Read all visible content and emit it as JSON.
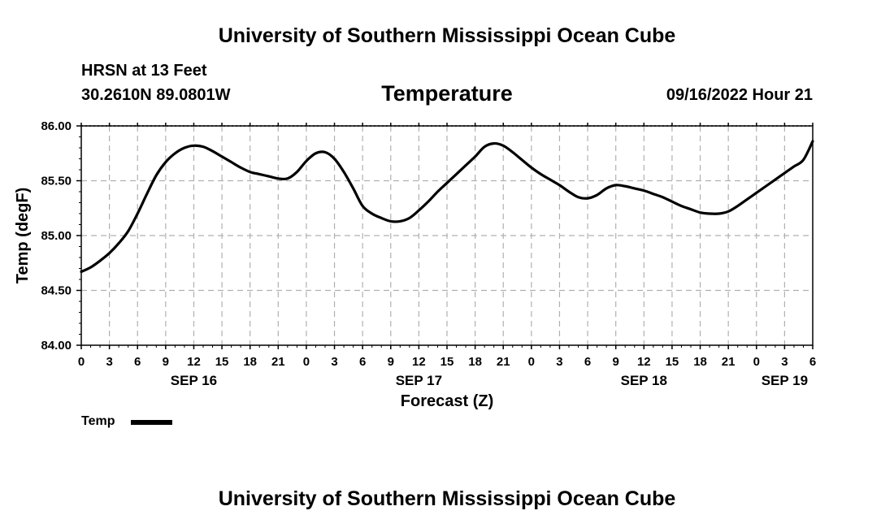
{
  "header": {
    "title_top": "University of Southern Mississippi Ocean Cube",
    "title_bottom": "University of Southern Mississippi Ocean Cube",
    "station": "HRSN at 13 Feet",
    "coordinates": "30.2610N  89.0801W",
    "variable": "Temperature",
    "timestamp": "09/16/2022 Hour 21"
  },
  "legend": {
    "label": "Temp"
  },
  "chart_data": {
    "type": "line",
    "title": "Temperature",
    "xlabel": "Forecast (Z)",
    "ylabel": "Temp (degF)",
    "ylim": [
      84.0,
      86.0
    ],
    "xlim": [
      0,
      78
    ],
    "x_unit": "hours since SEP 16 00Z",
    "grid": true,
    "legend_position": "bottom-left",
    "y_ticks": [
      "84.00",
      "84.50",
      "85.00",
      "85.50",
      "86.00"
    ],
    "y_tick_values": [
      84.0,
      84.5,
      85.0,
      85.5,
      86.0
    ],
    "x_ticks": [
      {
        "x": 0,
        "label": "0"
      },
      {
        "x": 3,
        "label": "3"
      },
      {
        "x": 6,
        "label": "6"
      },
      {
        "x": 9,
        "label": "9"
      },
      {
        "x": 12,
        "label": "12"
      },
      {
        "x": 15,
        "label": "15"
      },
      {
        "x": 18,
        "label": "18"
      },
      {
        "x": 21,
        "label": "21"
      },
      {
        "x": 24,
        "label": "0"
      },
      {
        "x": 27,
        "label": "3"
      },
      {
        "x": 30,
        "label": "6"
      },
      {
        "x": 33,
        "label": "9"
      },
      {
        "x": 36,
        "label": "12"
      },
      {
        "x": 39,
        "label": "15"
      },
      {
        "x": 42,
        "label": "18"
      },
      {
        "x": 45,
        "label": "21"
      },
      {
        "x": 48,
        "label": "0"
      },
      {
        "x": 51,
        "label": "3"
      },
      {
        "x": 54,
        "label": "6"
      },
      {
        "x": 57,
        "label": "9"
      },
      {
        "x": 60,
        "label": "12"
      },
      {
        "x": 63,
        "label": "15"
      },
      {
        "x": 66,
        "label": "18"
      },
      {
        "x": 69,
        "label": "21"
      },
      {
        "x": 72,
        "label": "0"
      },
      {
        "x": 75,
        "label": "3"
      },
      {
        "x": 78,
        "label": "6"
      }
    ],
    "date_labels": [
      {
        "x": 12,
        "label": "SEP 16"
      },
      {
        "x": 36,
        "label": "SEP 17"
      },
      {
        "x": 60,
        "label": "SEP 18"
      },
      {
        "x": 75,
        "label": "SEP 19"
      }
    ],
    "series": [
      {
        "name": "Temp",
        "color": "#000000",
        "x": [
          0,
          1,
          2,
          3,
          4,
          5,
          6,
          7,
          8,
          9,
          10,
          11,
          12,
          13,
          14,
          15,
          16,
          17,
          18,
          19,
          20,
          21,
          22,
          23,
          24,
          25,
          26,
          27,
          28,
          29,
          30,
          31,
          32,
          33,
          34,
          35,
          36,
          37,
          38,
          39,
          40,
          41,
          42,
          43,
          44,
          45,
          46,
          47,
          48,
          49,
          50,
          51,
          52,
          53,
          54,
          55,
          56,
          57,
          58,
          59,
          60,
          61,
          62,
          63,
          64,
          65,
          66,
          67,
          68,
          69,
          70,
          71,
          72,
          73,
          74,
          75,
          76,
          77,
          78
        ],
        "values": [
          84.67,
          84.71,
          84.77,
          84.84,
          84.93,
          85.04,
          85.2,
          85.38,
          85.55,
          85.67,
          85.75,
          85.8,
          85.82,
          85.81,
          85.77,
          85.72,
          85.67,
          85.62,
          85.58,
          85.56,
          85.54,
          85.52,
          85.52,
          85.58,
          85.68,
          85.75,
          85.76,
          85.7,
          85.58,
          85.43,
          85.27,
          85.2,
          85.16,
          85.13,
          85.13,
          85.16,
          85.23,
          85.31,
          85.4,
          85.48,
          85.56,
          85.64,
          85.72,
          85.81,
          85.84,
          85.82,
          85.76,
          85.69,
          85.62,
          85.56,
          85.51,
          85.46,
          85.4,
          85.35,
          85.34,
          85.37,
          85.43,
          85.46,
          85.45,
          85.43,
          85.41,
          85.38,
          85.35,
          85.31,
          85.27,
          85.24,
          85.21,
          85.2,
          85.2,
          85.22,
          85.27,
          85.33,
          85.39,
          85.45,
          85.51,
          85.57,
          85.63,
          85.69,
          85.86
        ]
      }
    ]
  }
}
